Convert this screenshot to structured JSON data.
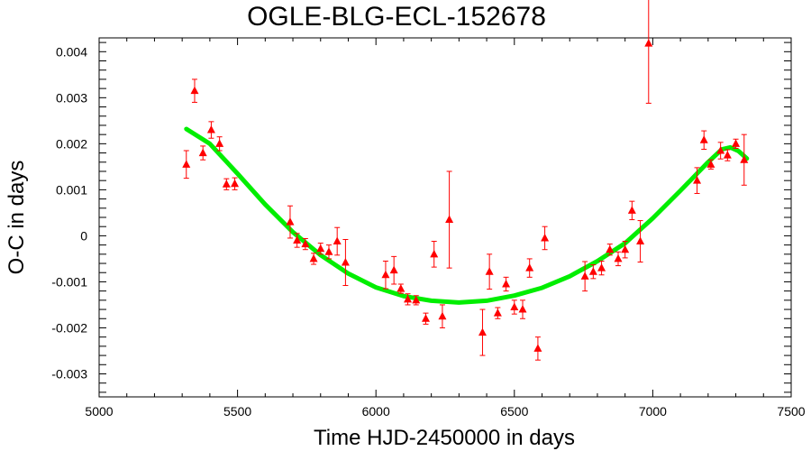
{
  "chart_data": {
    "type": "scatter",
    "title": "OGLE-BLG-ECL-152678",
    "xlabel": "Time HJD-2450000 in days",
    "ylabel": "O-C in days",
    "xlim": [
      5000,
      7500
    ],
    "ylim": [
      -0.0035,
      0.0043
    ],
    "x_ticks": [
      5000,
      5500,
      6000,
      6500,
      7000,
      7500
    ],
    "y_ticks": [
      -0.003,
      -0.002,
      -0.001,
      0,
      0.001,
      0.002,
      0.003,
      0.004
    ],
    "x_tick_labels": [
      "5000",
      "5500",
      "6000",
      "6500",
      "7000",
      "7500"
    ],
    "y_tick_labels": [
      "-0.003",
      "-0.002",
      "-0.001",
      "0",
      "0.001",
      "0.002",
      "0.003",
      "0.004"
    ],
    "grid": false,
    "colors": {
      "points": "#ff0000",
      "fit": "#00ee00",
      "axes": "#000000"
    },
    "series": [
      {
        "type": "scatter_with_errorbars",
        "points": [
          {
            "x": 5315,
            "y": 0.00155,
            "err": 0.0003
          },
          {
            "x": 5345,
            "y": 0.00315,
            "err": 0.00025
          },
          {
            "x": 5375,
            "y": 0.0018,
            "err": 0.00015
          },
          {
            "x": 5405,
            "y": 0.0023,
            "err": 0.00018
          },
          {
            "x": 5435,
            "y": 0.002,
            "err": 0.00015
          },
          {
            "x": 5460,
            "y": 0.00112,
            "err": 0.00012
          },
          {
            "x": 5490,
            "y": 0.00113,
            "err": 0.00013
          },
          {
            "x": 5690,
            "y": 0.0003,
            "err": 0.00035
          },
          {
            "x": 5715,
            "y": -0.0001,
            "err": 0.00015
          },
          {
            "x": 5745,
            "y": -0.00018,
            "err": 0.00012
          },
          {
            "x": 5775,
            "y": -0.0005,
            "err": 0.00012
          },
          {
            "x": 5800,
            "y": -0.00028,
            "err": 0.00012
          },
          {
            "x": 5830,
            "y": -0.00035,
            "err": 0.00015
          },
          {
            "x": 5860,
            "y": -0.00012,
            "err": 0.0003
          },
          {
            "x": 5890,
            "y": -0.00058,
            "err": 0.0005
          },
          {
            "x": 6035,
            "y": -0.00085,
            "err": 0.0003
          },
          {
            "x": 6065,
            "y": -0.00075,
            "err": 0.0003
          },
          {
            "x": 6090,
            "y": -0.00115,
            "err": 0.0001
          },
          {
            "x": 6115,
            "y": -0.00138,
            "err": 0.00012
          },
          {
            "x": 6145,
            "y": -0.0014,
            "err": 0.0001
          },
          {
            "x": 6180,
            "y": -0.0018,
            "err": 0.00012
          },
          {
            "x": 6210,
            "y": -0.0004,
            "err": 0.00028
          },
          {
            "x": 6240,
            "y": -0.00175,
            "err": 0.00025
          },
          {
            "x": 6265,
            "y": 0.00035,
            "err": 0.00105
          },
          {
            "x": 6385,
            "y": -0.0021,
            "err": 0.0005
          },
          {
            "x": 6410,
            "y": -0.00078,
            "err": 0.00038
          },
          {
            "x": 6440,
            "y": -0.00168,
            "err": 0.00012
          },
          {
            "x": 6470,
            "y": -0.00105,
            "err": 0.00015
          },
          {
            "x": 6500,
            "y": -0.00155,
            "err": 0.00015
          },
          {
            "x": 6530,
            "y": -0.0016,
            "err": 0.0002
          },
          {
            "x": 6555,
            "y": -0.0007,
            "err": 0.0002
          },
          {
            "x": 6585,
            "y": -0.00245,
            "err": 0.00025
          },
          {
            "x": 6610,
            "y": -5e-05,
            "err": 0.00025
          },
          {
            "x": 6755,
            "y": -0.00088,
            "err": 0.00032
          },
          {
            "x": 6785,
            "y": -0.00078,
            "err": 0.00015
          },
          {
            "x": 6815,
            "y": -0.0007,
            "err": 0.00015
          },
          {
            "x": 6845,
            "y": -0.0003,
            "err": 0.00012
          },
          {
            "x": 6875,
            "y": -0.0005,
            "err": 0.00015
          },
          {
            "x": 6900,
            "y": -0.0003,
            "err": 0.00018
          },
          {
            "x": 6925,
            "y": 0.00055,
            "err": 0.0002
          },
          {
            "x": 6955,
            "y": -0.00012,
            "err": 0.00045
          },
          {
            "x": 6985,
            "y": 0.00418,
            "err": 0.0013
          },
          {
            "x": 7160,
            "y": 0.0012,
            "err": 0.00028
          },
          {
            "x": 7185,
            "y": 0.00208,
            "err": 0.0002
          },
          {
            "x": 7210,
            "y": 0.00155,
            "err": 0.0001
          },
          {
            "x": 7245,
            "y": 0.00185,
            "err": 0.00018
          },
          {
            "x": 7270,
            "y": 0.00175,
            "err": 0.00012
          },
          {
            "x": 7300,
            "y": 0.002,
            "err": 0.0001
          },
          {
            "x": 7330,
            "y": 0.00165,
            "err": 0.00055
          }
        ]
      },
      {
        "type": "fit_line",
        "points": [
          {
            "x": 5315,
            "y": 0.00232
          },
          {
            "x": 5400,
            "y": 0.002
          },
          {
            "x": 5500,
            "y": 0.00135
          },
          {
            "x": 5600,
            "y": 0.00068
          },
          {
            "x": 5700,
            "y": 8e-05
          },
          {
            "x": 5800,
            "y": -0.00042
          },
          {
            "x": 5900,
            "y": -0.00082
          },
          {
            "x": 6000,
            "y": -0.00112
          },
          {
            "x": 6100,
            "y": -0.00131
          },
          {
            "x": 6200,
            "y": -0.00141
          },
          {
            "x": 6300,
            "y": -0.00145
          },
          {
            "x": 6400,
            "y": -0.00141
          },
          {
            "x": 6500,
            "y": -0.0013
          },
          {
            "x": 6600,
            "y": -0.00113
          },
          {
            "x": 6700,
            "y": -0.00088
          },
          {
            "x": 6800,
            "y": -0.00055
          },
          {
            "x": 6900,
            "y": -0.00016
          },
          {
            "x": 7000,
            "y": 0.00038
          },
          {
            "x": 7100,
            "y": 0.00098
          },
          {
            "x": 7200,
            "y": 0.0016
          },
          {
            "x": 7250,
            "y": 0.00188
          },
          {
            "x": 7280,
            "y": 0.00192
          },
          {
            "x": 7310,
            "y": 0.00184
          },
          {
            "x": 7340,
            "y": 0.00168
          }
        ]
      }
    ]
  }
}
